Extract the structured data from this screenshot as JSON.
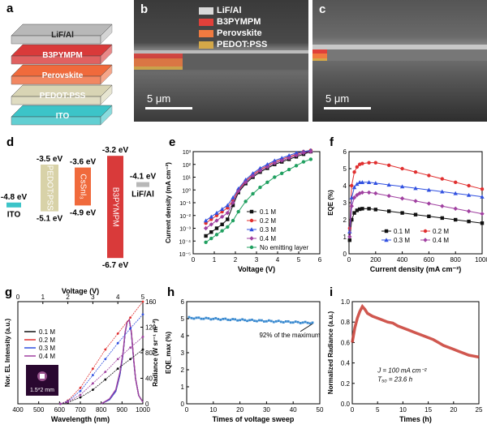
{
  "labels": {
    "a": "a",
    "b": "b",
    "c": "c",
    "d": "d",
    "e": "e",
    "f": "f",
    "g": "g",
    "h": "h",
    "i": "i"
  },
  "stack": {
    "layers": [
      {
        "name": "LiF/Al",
        "color": "#b8b8b8"
      },
      {
        "name": "B3PYMPM",
        "color": "#d93a3a"
      },
      {
        "name": "Perovskite",
        "color": "#f06a3c"
      },
      {
        "name": "PEDOT:PSS",
        "color": "#d8d4b4"
      },
      {
        "name": "ITO",
        "color": "#3cc4c8"
      }
    ]
  },
  "sem_b": {
    "legend": [
      {
        "name": "LiF/Al",
        "color": "#d9d9d9"
      },
      {
        "name": "B3PYMPM",
        "color": "#e0403a"
      },
      {
        "name": "Perovskite",
        "color": "#f07a40"
      },
      {
        "name": "PEDOT:PSS",
        "color": "#d4a848"
      }
    ],
    "scalebar": "5 μm"
  },
  "sem_c": {
    "scalebar": "5 μm"
  },
  "energy": {
    "layers": [
      {
        "name": "ITO",
        "top": "-4.8 eV",
        "bottom": "",
        "color": "#3cc4c8",
        "level_top": -4.8,
        "level_bottom": -4.85
      },
      {
        "name": "PEDOT:PSS",
        "top": "-3.5 eV",
        "bottom": "-5.1 eV",
        "color": "#d8d2a8",
        "level_top": -3.5,
        "level_bottom": -5.1
      },
      {
        "name": "CsSnI₃",
        "top": "-3.6 eV",
        "bottom": "-4.9 eV",
        "color": "#f06a3c",
        "level_top": -3.6,
        "level_bottom": -4.9
      },
      {
        "name": "B3PYMPM",
        "top": "-3.2 eV",
        "bottom": "-6.7 eV",
        "color": "#d93a3a",
        "level_top": -3.2,
        "level_bottom": -6.7
      },
      {
        "name": "LiF/Al",
        "top": "-4.1 eV",
        "bottom": "",
        "color": "#b8b8b8",
        "level_top": -4.1,
        "level_bottom": -4.15
      }
    ]
  },
  "chart_data": [
    {
      "id": "e",
      "type": "line",
      "xlabel": "Voltage (V)",
      "ylabel": "Current density (mA cm⁻²)",
      "xlim": [
        -0.5,
        6.5
      ],
      "ylim": [
        -5,
        3
      ],
      "log_y": true,
      "xticks": [
        "0",
        "1",
        "2",
        "3",
        "4",
        "5",
        "6"
      ],
      "yticks": [
        "10⁻⁵",
        "10⁻⁴",
        "10⁻³",
        "10⁻²",
        "10⁻¹",
        "10⁰",
        "10¹",
        "10²",
        "10³"
      ],
      "legend_position": "center-right",
      "series": [
        {
          "name": "0.1 M",
          "color": "#111111",
          "marker": "square",
          "x": [
            0.2,
            0.5,
            0.8,
            1.1,
            1.4,
            1.7,
            2.0,
            2.4,
            2.8,
            3.2,
            3.6,
            4.0,
            4.4,
            4.8,
            5.2,
            5.6,
            6.0
          ],
          "y": [
            -3.6,
            -3.3,
            -3.0,
            -2.7,
            -2.3,
            -1.2,
            -0.2,
            0.5,
            1.0,
            1.4,
            1.7,
            2.0,
            2.2,
            2.4,
            2.6,
            2.8,
            3.0
          ]
        },
        {
          "name": "0.2 M",
          "color": "#e03030",
          "marker": "circle",
          "x": [
            0.2,
            0.5,
            0.8,
            1.1,
            1.4,
            1.7,
            2.0,
            2.4,
            2.8,
            3.2,
            3.6,
            4.0,
            4.4,
            4.8,
            5.2,
            5.6,
            6.0
          ],
          "y": [
            -2.6,
            -2.3,
            -2.0,
            -1.7,
            -1.4,
            -0.8,
            0.0,
            0.7,
            1.2,
            1.6,
            1.9,
            2.2,
            2.4,
            2.6,
            2.8,
            3.0,
            3.1
          ]
        },
        {
          "name": "0.3 M",
          "color": "#3050e0",
          "marker": "triangle",
          "x": [
            0.2,
            0.5,
            0.8,
            1.1,
            1.4,
            1.7,
            2.0,
            2.4,
            2.8,
            3.2,
            3.6,
            4.0,
            4.4,
            4.8,
            5.2,
            5.6,
            6.0
          ],
          "y": [
            -2.4,
            -2.1,
            -1.8,
            -1.5,
            -1.2,
            -0.6,
            0.1,
            0.8,
            1.3,
            1.7,
            2.0,
            2.3,
            2.5,
            2.7,
            2.9,
            3.0,
            3.1
          ]
        },
        {
          "name": "0.4 M",
          "color": "#a040a0",
          "marker": "diamond",
          "x": [
            0.2,
            0.5,
            0.8,
            1.1,
            1.4,
            1.7,
            2.0,
            2.4,
            2.8,
            3.2,
            3.6,
            4.0,
            4.4,
            4.8,
            5.2,
            5.6,
            6.0
          ],
          "y": [
            -3.0,
            -2.7,
            -2.4,
            -2.1,
            -1.8,
            -1.0,
            -0.1,
            0.6,
            1.1,
            1.5,
            1.8,
            2.1,
            2.3,
            2.5,
            2.7,
            2.9,
            3.0
          ]
        },
        {
          "name": "No emitting layer",
          "color": "#20a060",
          "marker": "star",
          "x": [
            0.2,
            0.5,
            0.8,
            1.1,
            1.4,
            1.7,
            2.0,
            2.4,
            2.8,
            3.2,
            3.6,
            4.0,
            4.4,
            4.8,
            5.2,
            5.6,
            6.0
          ],
          "y": [
            -4.1,
            -3.8,
            -3.5,
            -3.2,
            -2.9,
            -2.4,
            -1.7,
            -0.9,
            -0.3,
            0.2,
            0.6,
            1.0,
            1.3,
            1.6,
            1.9,
            2.2,
            2.4
          ]
        }
      ]
    },
    {
      "id": "f",
      "type": "line",
      "xlabel": "Current density (mA cm⁻²)",
      "ylabel": "EQE (%)",
      "xlim": [
        0,
        1000
      ],
      "ylim": [
        0,
        6
      ],
      "xticks": [
        "0",
        "200",
        "400",
        "600",
        "800",
        "1000"
      ],
      "yticks": [
        "0",
        "1",
        "2",
        "3",
        "4",
        "5",
        "6"
      ],
      "legend_position": "bottom-right",
      "series": [
        {
          "name": "0.1 M",
          "color": "#111111",
          "marker": "square",
          "x": [
            5,
            20,
            40,
            60,
            80,
            100,
            150,
            200,
            300,
            400,
            500,
            600,
            700,
            800,
            900,
            1000
          ],
          "y": [
            0.8,
            2.0,
            2.4,
            2.55,
            2.62,
            2.65,
            2.65,
            2.6,
            2.5,
            2.4,
            2.3,
            2.2,
            2.1,
            2.0,
            1.9,
            1.8
          ]
        },
        {
          "name": "0.2 M",
          "color": "#e03030",
          "marker": "circle",
          "x": [
            5,
            20,
            40,
            60,
            80,
            100,
            150,
            200,
            300,
            400,
            500,
            600,
            700,
            800,
            900,
            1000
          ],
          "y": [
            1.5,
            4.0,
            4.8,
            5.1,
            5.25,
            5.3,
            5.35,
            5.35,
            5.2,
            5.0,
            4.8,
            4.6,
            4.4,
            4.2,
            4.0,
            3.8
          ]
        },
        {
          "name": "0.3 M",
          "color": "#3050e0",
          "marker": "triangle",
          "x": [
            5,
            20,
            40,
            60,
            80,
            100,
            150,
            200,
            300,
            400,
            500,
            600,
            700,
            800,
            900,
            1000
          ],
          "y": [
            1.3,
            3.3,
            3.9,
            4.1,
            4.2,
            4.2,
            4.2,
            4.15,
            4.05,
            3.95,
            3.85,
            3.75,
            3.65,
            3.55,
            3.45,
            3.35
          ]
        },
        {
          "name": "0.4 M",
          "color": "#a040a0",
          "marker": "diamond",
          "x": [
            5,
            20,
            40,
            60,
            80,
            100,
            150,
            200,
            300,
            400,
            500,
            600,
            700,
            800,
            900,
            1000
          ],
          "y": [
            1.0,
            2.8,
            3.3,
            3.45,
            3.55,
            3.6,
            3.6,
            3.55,
            3.4,
            3.25,
            3.1,
            2.95,
            2.8,
            2.65,
            2.5,
            2.35
          ]
        }
      ]
    },
    {
      "id": "g",
      "type": "line",
      "xlabel": "Wavelength (nm)",
      "x2label": "Voltage (V)",
      "ylabel": "Nor. EL Intensity (a.u.)",
      "y2label": "Radiance (W sr⁻¹ m⁻²)",
      "xlim": [
        400,
        1000
      ],
      "x2lim": [
        0,
        5
      ],
      "y2lim": [
        0,
        160
      ],
      "xticks": [
        "400",
        "500",
        "600",
        "700",
        "800",
        "900",
        "1000"
      ],
      "x2ticks": [
        "0",
        "1",
        "2",
        "3",
        "4",
        "5"
      ],
      "y2ticks": [
        "0",
        "40",
        "80",
        "120",
        "160"
      ],
      "legend_position": "center-left",
      "inset_label": "1.5*2 mm",
      "series": [
        {
          "name": "0.1 M",
          "color": "#111111"
        },
        {
          "name": "0.2 M",
          "color": "#e03030"
        },
        {
          "name": "0.3 M",
          "color": "#3050e0"
        },
        {
          "name": "0.4 M",
          "color": "#a040a0"
        }
      ],
      "el_curves": [
        {
          "color": "#111111",
          "x": [
            800,
            840,
            870,
            890,
            905,
            915,
            925,
            935,
            945,
            955,
            965,
            980,
            1000
          ],
          "y": [
            0.0,
            0.05,
            0.15,
            0.35,
            0.6,
            0.85,
            0.98,
            1.0,
            0.85,
            0.55,
            0.3,
            0.1,
            0.02
          ]
        },
        {
          "color": "#e03030",
          "x": [
            800,
            840,
            870,
            890,
            905,
            915,
            925,
            935,
            945,
            955,
            965,
            980,
            1000
          ],
          "y": [
            0.0,
            0.05,
            0.15,
            0.35,
            0.6,
            0.85,
            0.98,
            1.0,
            0.86,
            0.56,
            0.3,
            0.1,
            0.02
          ]
        },
        {
          "color": "#3050e0",
          "x": [
            800,
            840,
            870,
            890,
            905,
            915,
            925,
            935,
            945,
            955,
            965,
            980,
            1000
          ],
          "y": [
            0.0,
            0.05,
            0.15,
            0.35,
            0.6,
            0.85,
            0.98,
            1.0,
            0.84,
            0.54,
            0.3,
            0.1,
            0.02
          ]
        },
        {
          "color": "#a040a0",
          "x": [
            800,
            840,
            870,
            890,
            905,
            915,
            925,
            935,
            945,
            955,
            965,
            980,
            1000
          ],
          "y": [
            0.0,
            0.06,
            0.17,
            0.38,
            0.62,
            0.86,
            0.98,
            1.0,
            0.85,
            0.55,
            0.3,
            0.1,
            0.02
          ]
        }
      ],
      "radiance_curves": [
        {
          "color": "#111111",
          "v": [
            1.7,
            2.0,
            2.5,
            3.0,
            3.5,
            4.0,
            4.5,
            5.0
          ],
          "r": [
            0,
            2,
            10,
            22,
            38,
            55,
            70,
            85
          ]
        },
        {
          "color": "#e03030",
          "v": [
            1.7,
            2.0,
            2.5,
            3.0,
            3.5,
            4.0,
            4.5,
            5.0
          ],
          "r": [
            0,
            5,
            25,
            55,
            85,
            110,
            135,
            160
          ]
        },
        {
          "color": "#3050e0",
          "v": [
            1.7,
            2.0,
            2.5,
            3.0,
            3.5,
            4.0,
            4.5,
            5.0
          ],
          "r": [
            0,
            4,
            20,
            45,
            70,
            95,
            118,
            140
          ]
        },
        {
          "color": "#a040a0",
          "v": [
            1.7,
            2.0,
            2.5,
            3.0,
            3.5,
            4.0,
            4.5,
            5.0
          ],
          "r": [
            0,
            3,
            14,
            32,
            50,
            70,
            88,
            105
          ]
        }
      ]
    },
    {
      "id": "h",
      "type": "scatter",
      "xlabel": "Times of voltage sweep",
      "ylabel": "EQE_max (%)",
      "xlim": [
        0,
        55
      ],
      "ylim": [
        0,
        6
      ],
      "xticks": [
        "0",
        "10",
        "20",
        "30",
        "40",
        "50"
      ],
      "yticks": [
        "0",
        "1",
        "2",
        "3",
        "4",
        "5",
        "6"
      ],
      "annotation": "92% of the maximum",
      "series": [
        {
          "name": "",
          "color": "#3a8ad0",
          "start": 5.05,
          "end": 4.75,
          "n": 52
        }
      ]
    },
    {
      "id": "i",
      "type": "line",
      "xlabel": "Times (h)",
      "ylabel": "Normalized Radiance (a.u.)",
      "xlim": [
        0,
        25
      ],
      "ylim": [
        0,
        1.05
      ],
      "xticks": [
        "0",
        "5",
        "10",
        "15",
        "20",
        "25"
      ],
      "yticks": [
        "0.0",
        "0.2",
        "0.4",
        "0.6",
        "0.8",
        "1.0"
      ],
      "annotation_lines": [
        "J = 100 mA cm⁻²",
        "T₅₀ = 23.6 h"
      ],
      "series": [
        {
          "name": "",
          "color": "#c83a30",
          "x": [
            0,
            0.5,
            1,
            1.5,
            2,
            2.5,
            3,
            4,
            5,
            6,
            7,
            8,
            9,
            10,
            11,
            12,
            13,
            14,
            15,
            16,
            17,
            18,
            19,
            20,
            21,
            22,
            23,
            24,
            25
          ],
          "y": [
            0.63,
            0.78,
            0.88,
            0.95,
            1.0,
            0.97,
            0.93,
            0.9,
            0.88,
            0.86,
            0.84,
            0.83,
            0.8,
            0.78,
            0.76,
            0.74,
            0.72,
            0.7,
            0.68,
            0.66,
            0.63,
            0.6,
            0.58,
            0.56,
            0.54,
            0.52,
            0.5,
            0.49,
            0.48
          ]
        }
      ]
    }
  ]
}
